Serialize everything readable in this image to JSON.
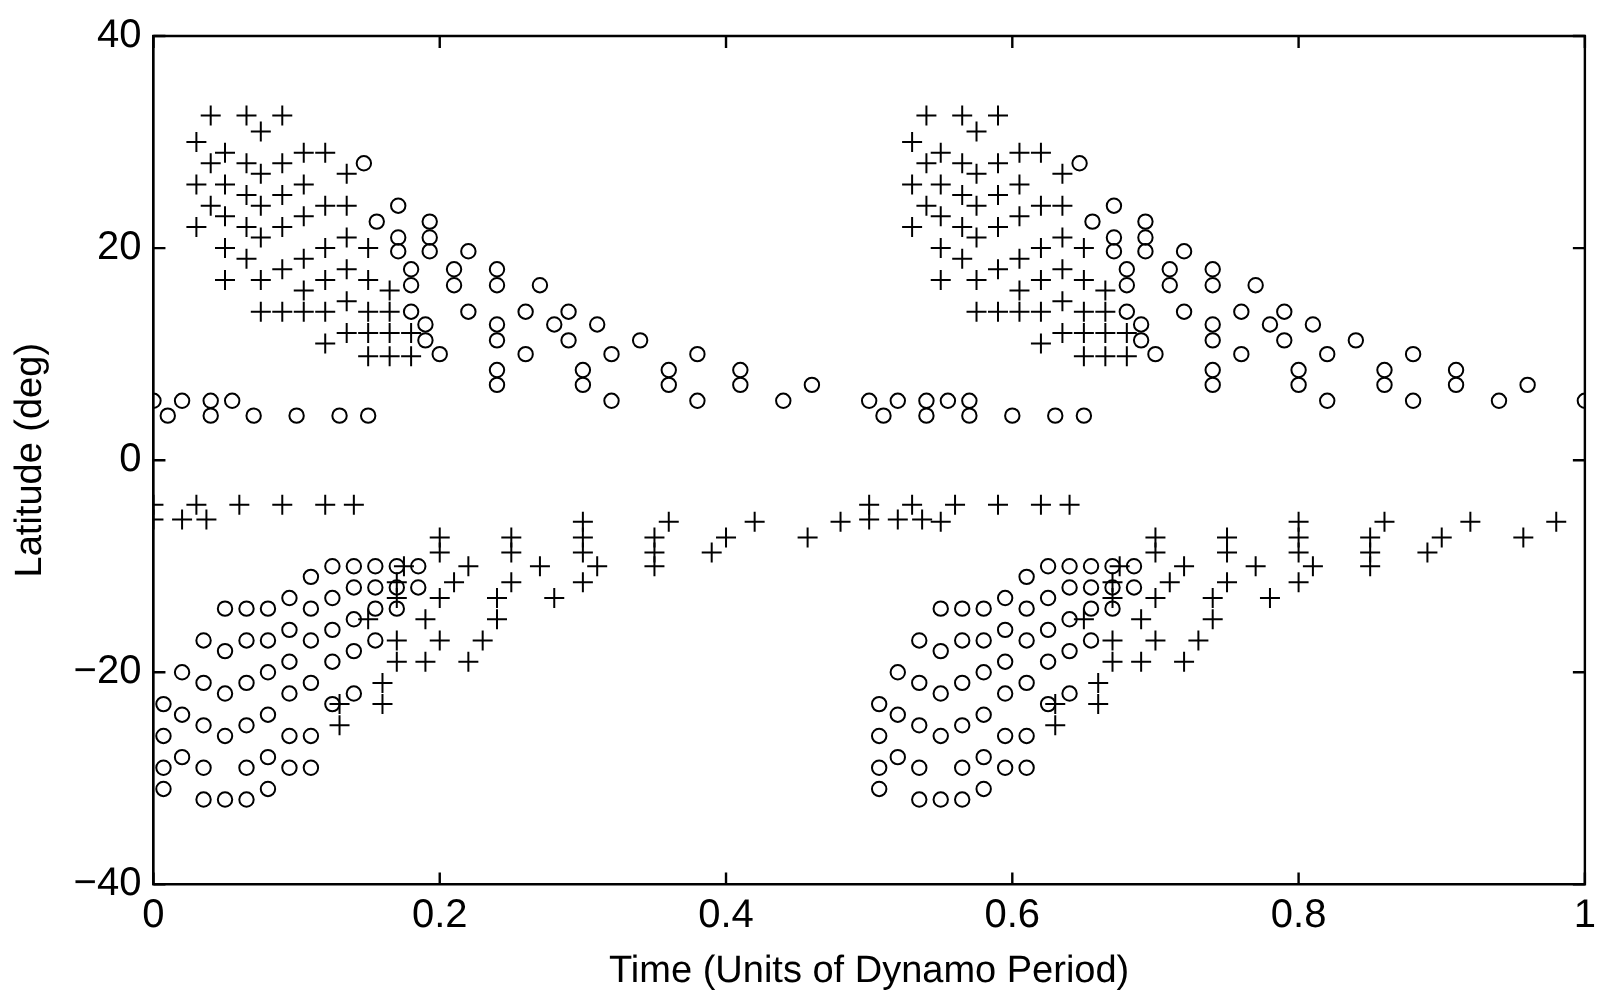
{
  "chart_data": {
    "type": "scatter",
    "xlabel": "Time (Units of Dynamo Period)",
    "ylabel": "Latitude (deg)",
    "xlim": [
      0,
      1
    ],
    "xticks": [
      0,
      0.2,
      0.4,
      0.6,
      0.8,
      1
    ],
    "ylim": [
      -40,
      40
    ],
    "yticks": [
      -40,
      -20,
      0,
      20,
      40
    ],
    "grid": false,
    "legend": false,
    "series": [
      {
        "color": "#000000",
        "marker": "circle",
        "x": [
          0,
          0.02,
          0.04,
          0.055,
          0.01,
          0.04,
          0.07,
          0.1,
          0.13,
          0.15,
          0.147,
          0.156,
          0.171,
          0.171,
          0.171,
          0.193,
          0.193,
          0.193,
          0.22,
          0.18,
          0.21,
          0.24,
          0.18,
          0.21,
          0.24,
          0.27,
          0.18,
          0.22,
          0.26,
          0.29,
          0.19,
          0.24,
          0.28,
          0.31,
          0.19,
          0.24,
          0.29,
          0.34,
          0.2,
          0.26,
          0.32,
          0.38,
          0.24,
          0.3,
          0.36,
          0.41,
          0.24,
          0.3,
          0.36,
          0.41,
          0.46,
          0.32,
          0.38,
          0.44,
          0.5,
          0.57,
          0.007,
          0.007,
          0.007,
          0.007,
          0.02,
          0.02,
          0.02,
          0.035,
          0.035,
          0.035,
          0.035,
          0.035,
          0.05,
          0.05,
          0.05,
          0.05,
          0.05,
          0.065,
          0.065,
          0.065,
          0.065,
          0.065,
          0.065,
          0.08,
          0.08,
          0.08,
          0.08,
          0.08,
          0.08,
          0.095,
          0.095,
          0.095,
          0.095,
          0.095,
          0.095,
          0.11,
          0.11,
          0.11,
          0.11,
          0.11,
          0.11,
          0.125,
          0.125,
          0.125,
          0.125,
          0.125,
          0.14,
          0.14,
          0.14,
          0.14,
          0.14,
          0.155,
          0.155,
          0.155,
          0.155,
          0.17,
          0.17,
          0.17,
          0.185,
          0.185
        ],
        "values": [
          5.6,
          5.6,
          5.6,
          5.6,
          4.2,
          4.2,
          4.2,
          4.2,
          4.2,
          4.2,
          28,
          22.5,
          24,
          21,
          19.7,
          22.5,
          21,
          19.7,
          19.7,
          18,
          18,
          18,
          16.5,
          16.5,
          16.5,
          16.5,
          14,
          14,
          14,
          14,
          12.8,
          12.8,
          12.8,
          12.8,
          11.3,
          11.3,
          11.3,
          11.3,
          10,
          10,
          10,
          10,
          8.5,
          8.5,
          8.5,
          8.5,
          7.1,
          7.1,
          7.1,
          7.1,
          7.1,
          5.6,
          5.6,
          5.6,
          5.6,
          5.6,
          -23,
          -26,
          -29,
          -31,
          -20,
          -24,
          -28,
          -17,
          -21,
          -25,
          -29,
          -32,
          -14,
          -18,
          -22,
          -26,
          -32,
          -14,
          -17,
          -21,
          -25,
          -29,
          -32,
          -14,
          -17,
          -20,
          -24,
          -28,
          -31,
          -13,
          -16,
          -19,
          -22,
          -26,
          -29,
          -11,
          -14,
          -17,
          -21,
          -26,
          -29,
          -10,
          -13,
          -16,
          -19,
          -23,
          -10,
          -12,
          -15,
          -18,
          -22,
          -10,
          -12,
          -14,
          -17,
          -10,
          -12,
          -14,
          -10,
          -12
        ]
      },
      {
        "color": "#000000",
        "marker": "circle",
        "x": [
          0.52,
          0.54,
          0.555,
          0.51,
          0.54,
          0.57,
          0.6,
          0.63,
          0.65,
          0.647,
          0.656,
          0.671,
          0.671,
          0.671,
          0.693,
          0.693,
          0.693,
          0.72,
          0.68,
          0.71,
          0.74,
          0.68,
          0.71,
          0.74,
          0.77,
          0.68,
          0.72,
          0.76,
          0.79,
          0.69,
          0.74,
          0.78,
          0.81,
          0.69,
          0.74,
          0.79,
          0.84,
          0.7,
          0.76,
          0.82,
          0.88,
          0.74,
          0.8,
          0.86,
          0.91,
          0.74,
          0.8,
          0.86,
          0.91,
          0.96,
          0.82,
          0.88,
          0.94,
          1,
          0.507,
          0.507,
          0.507,
          0.507,
          0.52,
          0.52,
          0.52,
          0.535,
          0.535,
          0.535,
          0.535,
          0.535,
          0.55,
          0.55,
          0.55,
          0.55,
          0.55,
          0.565,
          0.565,
          0.565,
          0.565,
          0.565,
          0.565,
          0.58,
          0.58,
          0.58,
          0.58,
          0.58,
          0.58,
          0.595,
          0.595,
          0.595,
          0.595,
          0.595,
          0.595,
          0.61,
          0.61,
          0.61,
          0.61,
          0.61,
          0.61,
          0.625,
          0.625,
          0.625,
          0.625,
          0.625,
          0.64,
          0.64,
          0.64,
          0.64,
          0.64,
          0.655,
          0.655,
          0.655,
          0.655,
          0.67,
          0.67,
          0.67,
          0.685,
          0.685
        ],
        "values": [
          5.6,
          5.6,
          5.6,
          4.2,
          4.2,
          4.2,
          4.2,
          4.2,
          4.2,
          28,
          22.5,
          24,
          21,
          19.7,
          22.5,
          21,
          19.7,
          19.7,
          18,
          18,
          18,
          16.5,
          16.5,
          16.5,
          16.5,
          14,
          14,
          14,
          14,
          12.8,
          12.8,
          12.8,
          12.8,
          11.3,
          11.3,
          11.3,
          11.3,
          10,
          10,
          10,
          10,
          8.5,
          8.5,
          8.5,
          8.5,
          7.1,
          7.1,
          7.1,
          7.1,
          7.1,
          5.6,
          5.6,
          5.6,
          5.6,
          -23,
          -26,
          -29,
          -31,
          -20,
          -24,
          -28,
          -17,
          -21,
          -25,
          -29,
          -32,
          -14,
          -18,
          -22,
          -26,
          -32,
          -14,
          -17,
          -21,
          -25,
          -29,
          -32,
          -14,
          -17,
          -20,
          -24,
          -28,
          -31,
          -13,
          -16,
          -19,
          -22,
          -26,
          -29,
          -11,
          -14,
          -17,
          -21,
          -26,
          -29,
          -10,
          -13,
          -16,
          -19,
          -23,
          -10,
          -12,
          -15,
          -18,
          -22,
          -10,
          -12,
          -14,
          -17,
          -10,
          -12,
          -14,
          -10,
          -12
        ]
      },
      {
        "color": "#000000",
        "marker": "cross",
        "x": [
          0.03,
          0.03,
          0.03,
          0.04,
          0.04,
          0.04,
          0.05,
          0.05,
          0.05,
          0.05,
          0.05,
          0.065,
          0.065,
          0.065,
          0.065,
          0.065,
          0.075,
          0.075,
          0.075,
          0.075,
          0.075,
          0.075,
          0.09,
          0.09,
          0.09,
          0.09,
          0.09,
          0.09,
          0.105,
          0.105,
          0.105,
          0.105,
          0.105,
          0.105,
          0.12,
          0.12,
          0.12,
          0.12,
          0.12,
          0.12,
          0.135,
          0.135,
          0.135,
          0.135,
          0.135,
          0.135,
          0.15,
          0.15,
          0.15,
          0.15,
          0.15,
          0.165,
          0.165,
          0.165,
          0.165,
          0.18,
          0.18,
          0,
          0.03,
          0.06,
          0.09,
          0.12,
          0.14,
          0,
          0.02,
          0.037,
          0.3,
          0.36,
          0.42,
          0.48,
          0.55,
          0.2,
          0.25,
          0.3,
          0.35,
          0.4,
          0.457,
          0.2,
          0.25,
          0.3,
          0.35,
          0.39,
          0.175,
          0.22,
          0.27,
          0.31,
          0.35,
          0.17,
          0.21,
          0.25,
          0.3,
          0.17,
          0.2,
          0.24,
          0.28,
          0.15,
          0.19,
          0.24,
          0.17,
          0.2,
          0.23,
          0.17,
          0.19,
          0.22,
          0.16,
          0.13,
          0.16,
          0.13
        ],
        "values": [
          22,
          26,
          30,
          24,
          28,
          32.5,
          17,
          20,
          23,
          26,
          29,
          19,
          22,
          25,
          28,
          32.5,
          14,
          17,
          21,
          24,
          27,
          31,
          14,
          18,
          22,
          25,
          28,
          32.5,
          14,
          16,
          19,
          23,
          26,
          29,
          11,
          14,
          17,
          20,
          24,
          29,
          12,
          15,
          18,
          21,
          24,
          27,
          9.8,
          12,
          14,
          17,
          20,
          9.8,
          12,
          14,
          16,
          9.8,
          12,
          -4.2,
          -4.2,
          -4.2,
          -4.2,
          -4.2,
          -4.2,
          -5.6,
          -5.6,
          -5.6,
          -5.8,
          -5.8,
          -5.8,
          -5.8,
          -5.8,
          -7.3,
          -7.3,
          -7.3,
          -7.3,
          -7.3,
          -7.3,
          -8.7,
          -8.7,
          -8.7,
          -8.7,
          -8.7,
          -10,
          -10,
          -10,
          -10,
          -10,
          -11.5,
          -11.5,
          -11.5,
          -11.5,
          -13,
          -13,
          -13,
          -13,
          -15,
          -15,
          -15,
          -17,
          -17,
          -17,
          -19,
          -19,
          -19,
          -21,
          -23,
          -23,
          -25
        ]
      },
      {
        "color": "#000000",
        "marker": "cross",
        "x": [
          0.53,
          0.53,
          0.53,
          0.54,
          0.54,
          0.54,
          0.55,
          0.55,
          0.55,
          0.55,
          0.55,
          0.565,
          0.565,
          0.565,
          0.565,
          0.565,
          0.575,
          0.575,
          0.575,
          0.575,
          0.575,
          0.575,
          0.59,
          0.59,
          0.59,
          0.59,
          0.59,
          0.59,
          0.605,
          0.605,
          0.605,
          0.605,
          0.605,
          0.605,
          0.62,
          0.62,
          0.62,
          0.62,
          0.62,
          0.62,
          0.635,
          0.635,
          0.635,
          0.635,
          0.635,
          0.635,
          0.65,
          0.65,
          0.65,
          0.65,
          0.65,
          0.665,
          0.665,
          0.665,
          0.665,
          0.68,
          0.68,
          0.5,
          0.53,
          0.56,
          0.59,
          0.62,
          0.64,
          0.5,
          0.52,
          0.537,
          0.8,
          0.86,
          0.92,
          0.98,
          0.7,
          0.75,
          0.8,
          0.85,
          0.9,
          0.957,
          0.7,
          0.75,
          0.8,
          0.85,
          0.89,
          0.675,
          0.72,
          0.77,
          0.81,
          0.85,
          0.67,
          0.71,
          0.75,
          0.8,
          0.67,
          0.7,
          0.74,
          0.78,
          0.65,
          0.69,
          0.74,
          0.67,
          0.7,
          0.73,
          0.67,
          0.69,
          0.72,
          0.66,
          0.63,
          0.66,
          0.63
        ],
        "values": [
          22,
          26,
          30,
          24,
          28,
          32.5,
          17,
          20,
          23,
          26,
          29,
          19,
          22,
          25,
          28,
          32.5,
          14,
          17,
          21,
          24,
          27,
          31,
          14,
          18,
          22,
          25,
          28,
          32.5,
          14,
          16,
          19,
          23,
          26,
          29,
          11,
          14,
          17,
          20,
          24,
          29,
          12,
          15,
          18,
          21,
          24,
          27,
          9.8,
          12,
          14,
          17,
          20,
          9.8,
          12,
          14,
          16,
          9.8,
          12,
          -4.2,
          -4.2,
          -4.2,
          -4.2,
          -4.2,
          -4.2,
          -5.6,
          -5.6,
          -5.6,
          -5.8,
          -5.8,
          -5.8,
          -5.8,
          -7.3,
          -7.3,
          -7.3,
          -7.3,
          -7.3,
          -7.3,
          -8.7,
          -8.7,
          -8.7,
          -8.7,
          -8.7,
          -10,
          -10,
          -10,
          -10,
          -10,
          -11.5,
          -11.5,
          -11.5,
          -11.5,
          -13,
          -13,
          -13,
          -13,
          -15,
          -15,
          -15,
          -17,
          -17,
          -17,
          -19,
          -19,
          -19,
          -21,
          -23,
          -23,
          -25
        ]
      }
    ]
  }
}
